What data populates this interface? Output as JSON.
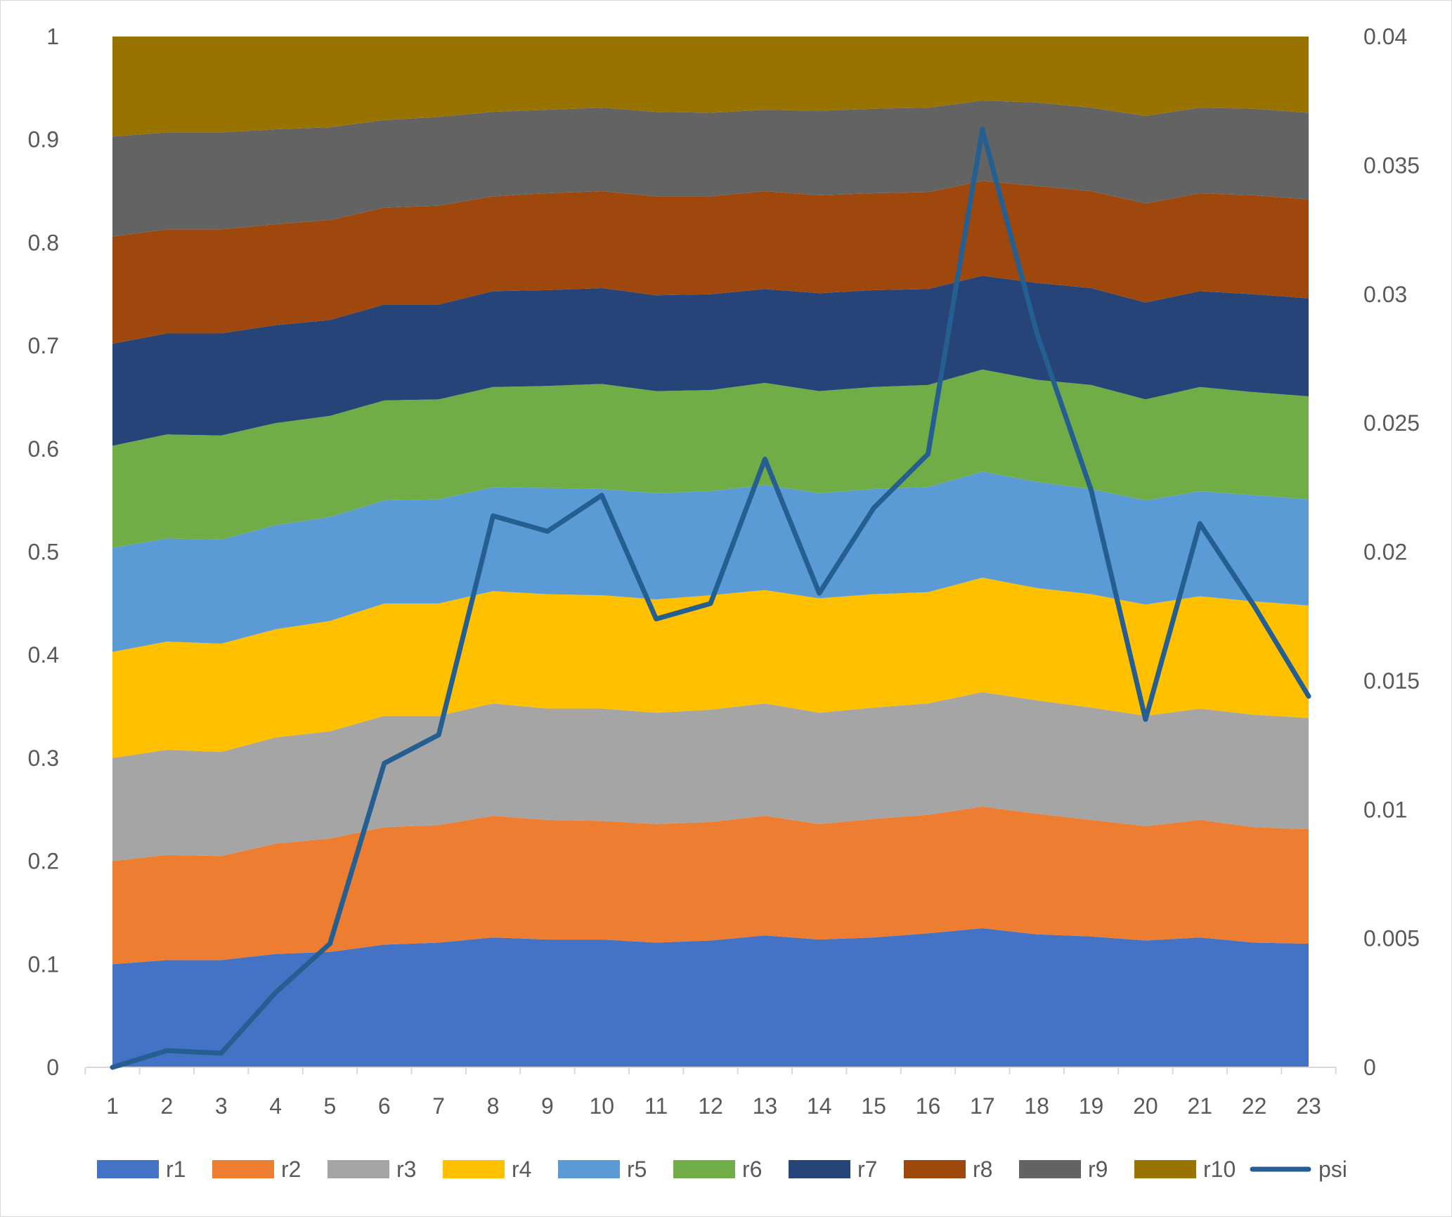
{
  "chart_data": {
    "type": "area",
    "stacked": true,
    "title": "",
    "xlabel": "",
    "ylabel": "",
    "categories": [
      "1",
      "2",
      "3",
      "4",
      "5",
      "6",
      "7",
      "8",
      "9",
      "10",
      "11",
      "12",
      "13",
      "14",
      "15",
      "16",
      "17",
      "18",
      "19",
      "20",
      "21",
      "22",
      "23"
    ],
    "ylim": [
      0,
      1
    ],
    "yticks": [
      "0",
      "0.1",
      "0.2",
      "0.3",
      "0.4",
      "0.5",
      "0.6",
      "0.7",
      "0.8",
      "0.9",
      "1"
    ],
    "y2lim": [
      0,
      0.04
    ],
    "y2ticks": [
      "0",
      "0.005",
      "0.01",
      "0.015",
      "0.02",
      "0.025",
      "0.03",
      "0.035",
      "0.04"
    ],
    "boundaries": [
      [
        0.1,
        0.104,
        0.104,
        0.11,
        0.112,
        0.119,
        0.121,
        0.126,
        0.124,
        0.124,
        0.121,
        0.123,
        0.128,
        0.124,
        0.126,
        0.13,
        0.135,
        0.129,
        0.127,
        0.123,
        0.126,
        0.121,
        0.12
      ],
      [
        0.2,
        0.206,
        0.205,
        0.217,
        0.222,
        0.233,
        0.235,
        0.244,
        0.24,
        0.239,
        0.236,
        0.238,
        0.244,
        0.236,
        0.241,
        0.245,
        0.253,
        0.246,
        0.24,
        0.234,
        0.24,
        0.233,
        0.231
      ],
      [
        0.3,
        0.308,
        0.306,
        0.32,
        0.326,
        0.341,
        0.341,
        0.353,
        0.348,
        0.348,
        0.344,
        0.347,
        0.353,
        0.344,
        0.349,
        0.353,
        0.364,
        0.356,
        0.349,
        0.341,
        0.348,
        0.342,
        0.339
      ],
      [
        0.403,
        0.413,
        0.411,
        0.425,
        0.433,
        0.45,
        0.45,
        0.462,
        0.459,
        0.458,
        0.454,
        0.458,
        0.463,
        0.455,
        0.459,
        0.461,
        0.475,
        0.465,
        0.459,
        0.449,
        0.457,
        0.452,
        0.448
      ],
      [
        0.504,
        0.513,
        0.512,
        0.526,
        0.534,
        0.55,
        0.551,
        0.563,
        0.562,
        0.561,
        0.557,
        0.559,
        0.565,
        0.557,
        0.561,
        0.563,
        0.578,
        0.568,
        0.561,
        0.55,
        0.559,
        0.555,
        0.551
      ],
      [
        0.603,
        0.614,
        0.613,
        0.625,
        0.632,
        0.647,
        0.648,
        0.66,
        0.661,
        0.663,
        0.656,
        0.657,
        0.664,
        0.656,
        0.66,
        0.662,
        0.677,
        0.667,
        0.662,
        0.648,
        0.66,
        0.655,
        0.651
      ],
      [
        0.702,
        0.712,
        0.712,
        0.72,
        0.725,
        0.74,
        0.74,
        0.753,
        0.754,
        0.756,
        0.749,
        0.75,
        0.755,
        0.751,
        0.754,
        0.755,
        0.768,
        0.761,
        0.756,
        0.742,
        0.753,
        0.75,
        0.746
      ],
      [
        0.806,
        0.813,
        0.813,
        0.818,
        0.822,
        0.834,
        0.836,
        0.845,
        0.848,
        0.85,
        0.845,
        0.845,
        0.85,
        0.846,
        0.848,
        0.849,
        0.86,
        0.855,
        0.85,
        0.838,
        0.848,
        0.846,
        0.842
      ],
      [
        0.903,
        0.907,
        0.907,
        0.91,
        0.912,
        0.919,
        0.922,
        0.927,
        0.929,
        0.931,
        0.927,
        0.926,
        0.929,
        0.928,
        0.93,
        0.931,
        0.938,
        0.936,
        0.931,
        0.923,
        0.931,
        0.93,
        0.926
      ],
      [
        1,
        1,
        1,
        1,
        1,
        1,
        1,
        1,
        1,
        1,
        1,
        1,
        1,
        1,
        1,
        1,
        1,
        1,
        1,
        1,
        1,
        1,
        1
      ]
    ],
    "series": [
      {
        "name": "r1",
        "color": "#4472c4"
      },
      {
        "name": "r2",
        "color": "#ed7d31"
      },
      {
        "name": "r3",
        "color": "#a5a5a5"
      },
      {
        "name": "r4",
        "color": "#ffc000"
      },
      {
        "name": "r5",
        "color": "#5b9bd5"
      },
      {
        "name": "r6",
        "color": "#70ad47"
      },
      {
        "name": "r7",
        "color": "#264478"
      },
      {
        "name": "r8",
        "color": "#9e480e"
      },
      {
        "name": "r9",
        "color": "#636363"
      },
      {
        "name": "r10",
        "color": "#997300"
      }
    ],
    "line_series": {
      "name": "psi",
      "axis": "secondary",
      "color": "#255e91",
      "values": [
        0,
        0.00065,
        0.00055,
        0.0029,
        0.0048,
        0.0118,
        0.0129,
        0.0214,
        0.0208,
        0.0222,
        0.0174,
        0.018,
        0.0236,
        0.0184,
        0.0217,
        0.0238,
        0.0364,
        0.0285,
        0.0224,
        0.0135,
        0.0211,
        0.0179,
        0.0144
      ]
    },
    "legend": "bottom",
    "grid": false
  }
}
